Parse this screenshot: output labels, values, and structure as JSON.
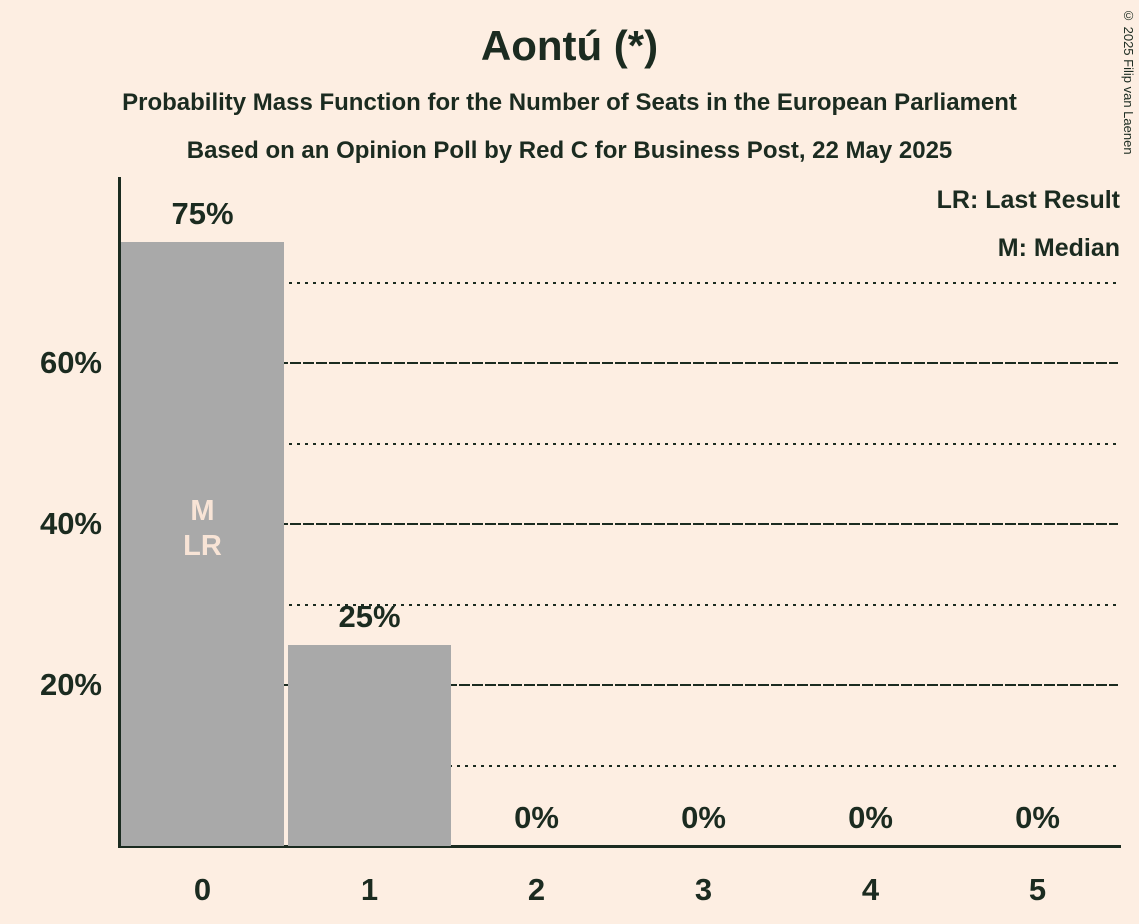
{
  "title": "Aontú (*)",
  "subtitle1": "Probability Mass Function for the Number of Seats in the European Parliament",
  "subtitle2": "Based on an Opinion Poll by Red C for Business Post, 22 May 2025",
  "copyright": "© 2025 Filip van Laenen",
  "legend": {
    "lr_label": "LR: Last Result",
    "m_label": "M: Median"
  },
  "colors": {
    "background": "#fdeee2",
    "text": "#1b2b20",
    "bar": "#a9a9a9",
    "bar_annotation_text": "#f8e4d6"
  },
  "chart_data": {
    "type": "bar",
    "title": "Aontú (*)",
    "categories": [
      "0",
      "1",
      "2",
      "3",
      "4",
      "5"
    ],
    "values": [
      75,
      25,
      0,
      0,
      0,
      0
    ],
    "value_labels": [
      "75%",
      "25%",
      "0%",
      "0%",
      "0%",
      "0%"
    ],
    "y_ticks": [
      {
        "value": 20,
        "label": "20%"
      },
      {
        "value": 40,
        "label": "40%"
      },
      {
        "value": 60,
        "label": "60%"
      }
    ],
    "solid_gridlines": [
      20,
      40,
      60
    ],
    "dotted_gridlines": [
      10,
      30,
      50,
      70
    ],
    "ylim": [
      0,
      83
    ],
    "grid": true,
    "legend_position": "top-right",
    "annotations": {
      "seat0_labels": [
        "M",
        "LR"
      ],
      "median_seat": "0",
      "last_result_seat": "0"
    }
  }
}
